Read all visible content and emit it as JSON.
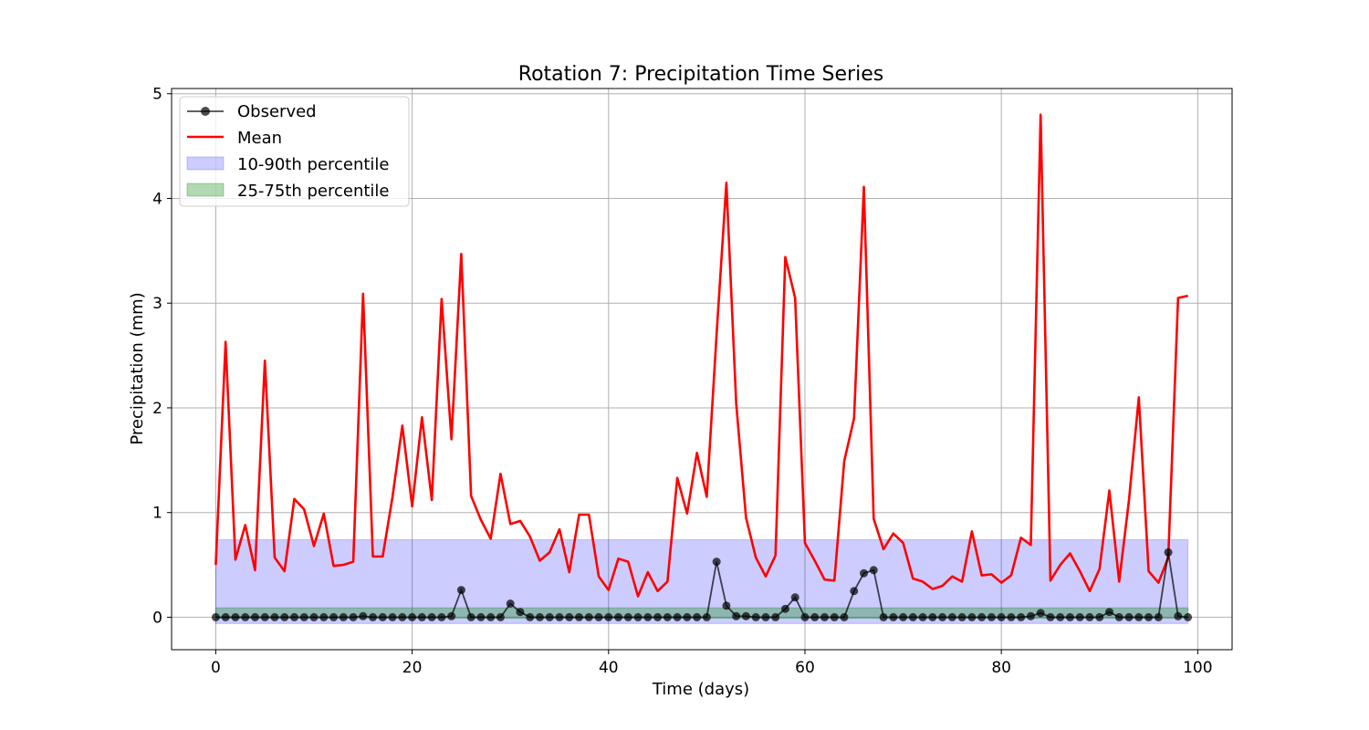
{
  "chart_data": {
    "type": "line",
    "title": "Rotation 7: Precipitation Time Series",
    "xlabel": "Time (days)",
    "ylabel": "Precipitation (mm)",
    "xlim": [
      -4.5,
      103.5
    ],
    "ylim": [
      -0.31,
      5.05
    ],
    "xticks": [
      0,
      20,
      40,
      60,
      80,
      100
    ],
    "yticks": [
      0,
      1,
      2,
      3,
      4,
      5
    ],
    "grid": true,
    "legend_position": "top-left",
    "bands": [
      {
        "name": "10-90th percentile",
        "x_start": 0,
        "x_end": 99,
        "lower": -0.06,
        "upper": 0.74,
        "color": "#0000ff",
        "opacity": 0.2
      },
      {
        "name": "25-75th percentile",
        "x_start": 0,
        "x_end": 99,
        "lower": -0.01,
        "upper": 0.09,
        "color": "#008000",
        "opacity": 0.3
      }
    ],
    "series": [
      {
        "name": "Observed",
        "color": "#000000",
        "marker": "circle",
        "values": [
          0,
          0,
          0,
          0,
          0,
          0,
          0,
          0,
          0,
          0,
          0,
          0,
          0,
          0,
          0,
          0.01,
          0,
          0,
          0,
          0,
          0,
          0,
          0,
          0,
          0.01,
          0.26,
          0,
          0,
          0,
          0,
          0.13,
          0.05,
          0,
          0,
          0,
          0,
          0,
          0,
          0,
          0,
          0,
          0,
          0,
          0,
          0,
          0,
          0,
          0,
          0,
          0,
          0,
          0.53,
          0.11,
          0.01,
          0.01,
          0,
          0,
          0,
          0.08,
          0.19,
          0,
          0,
          0,
          0,
          0,
          0.25,
          0.42,
          0.45,
          0,
          0,
          0,
          0,
          0,
          0,
          0,
          0,
          0,
          0,
          0,
          0,
          0,
          0,
          0,
          0.01,
          0.04,
          0,
          0,
          0,
          0,
          0,
          0,
          0.05,
          0,
          0,
          0,
          0,
          0,
          0.62,
          0.01,
          0
        ]
      },
      {
        "name": "Mean",
        "color": "#ff0000",
        "values": [
          0.5,
          2.63,
          0.55,
          0.88,
          0.45,
          2.45,
          0.57,
          0.44,
          1.13,
          1.03,
          0.68,
          0.99,
          0.49,
          0.5,
          0.53,
          3.09,
          0.58,
          0.58,
          1.15,
          1.83,
          1.06,
          1.91,
          1.12,
          3.04,
          1.7,
          3.47,
          1.16,
          0.93,
          0.75,
          1.37,
          0.89,
          0.92,
          0.77,
          0.54,
          0.62,
          0.84,
          0.43,
          0.98,
          0.98,
          0.39,
          0.26,
          0.56,
          0.53,
          0.2,
          0.43,
          0.25,
          0.34,
          1.33,
          0.99,
          1.57,
          1.15,
          2.7,
          4.15,
          2.04,
          0.95,
          0.57,
          0.39,
          0.59,
          3.44,
          3.05,
          0.71,
          0.54,
          0.36,
          0.35,
          1.49,
          1.9,
          4.11,
          0.94,
          0.65,
          0.8,
          0.71,
          0.37,
          0.34,
          0.27,
          0.3,
          0.39,
          0.34,
          0.82,
          0.4,
          0.41,
          0.33,
          0.4,
          0.76,
          0.69,
          4.8,
          0.35,
          0.5,
          0.61,
          0.44,
          0.25,
          0.46,
          1.21,
          0.34,
          1.12,
          2.1,
          0.44,
          0.33,
          0.57,
          3.05,
          3.07
        ]
      }
    ]
  }
}
